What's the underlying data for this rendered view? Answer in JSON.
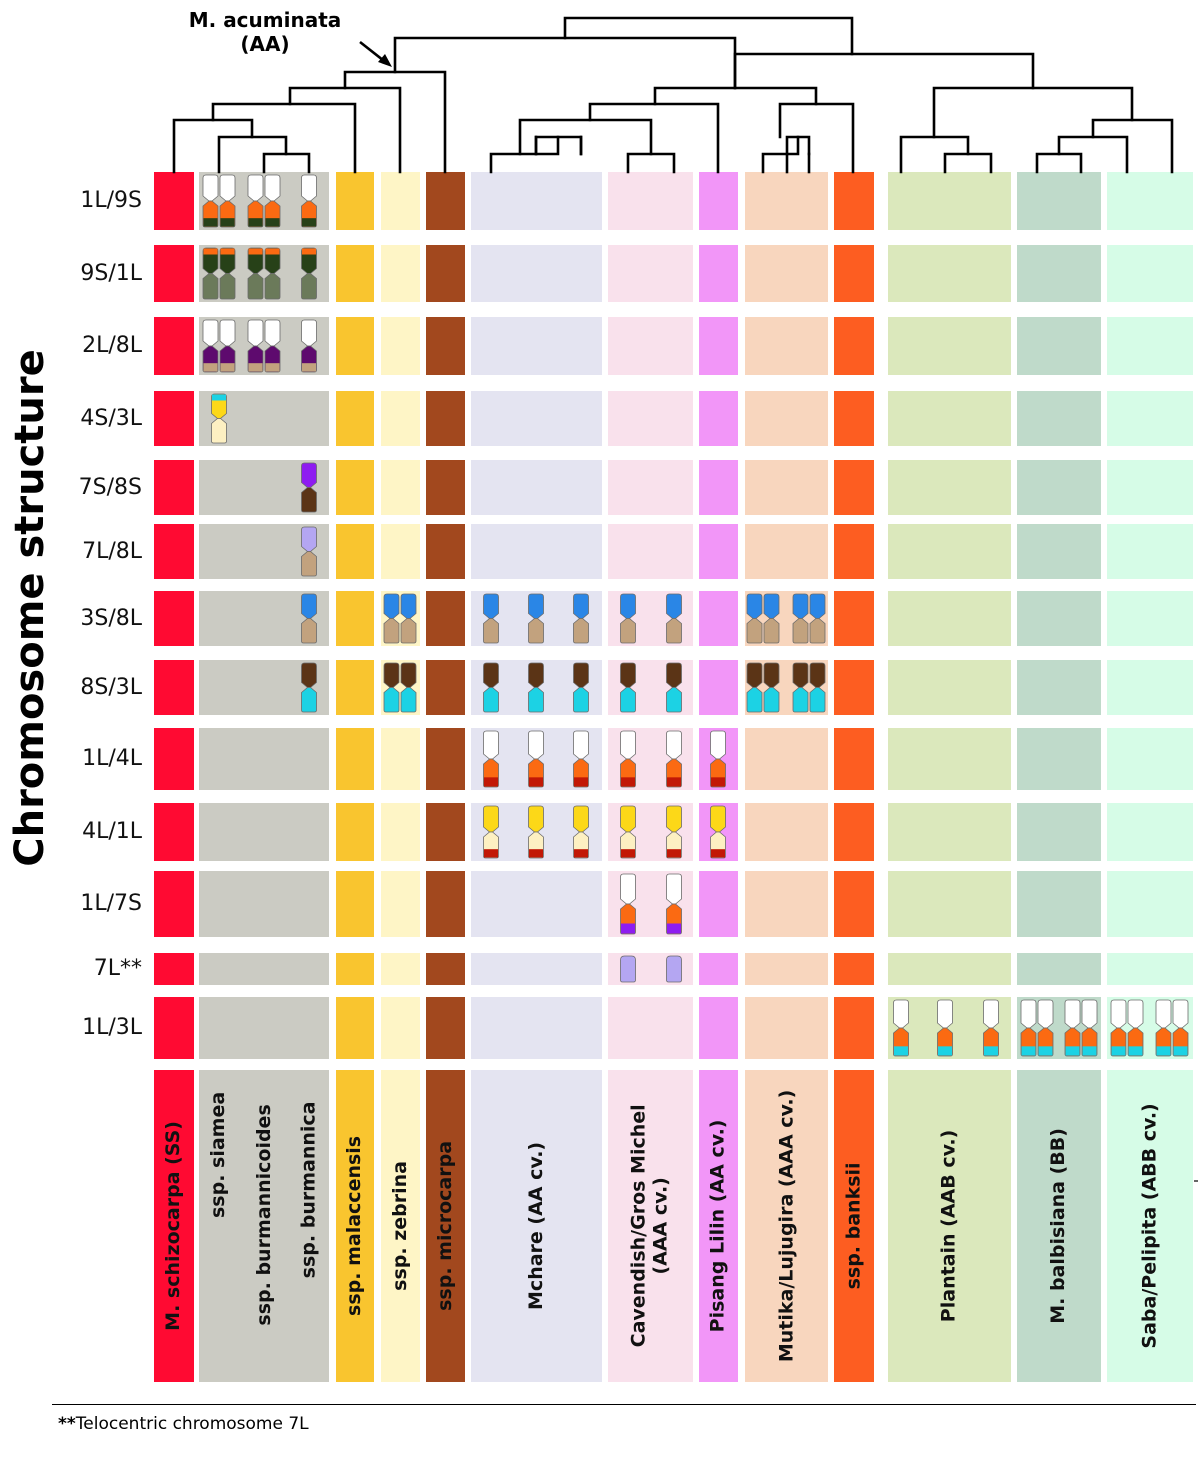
{
  "axis_title": "Chromosome structure",
  "root_label": {
    "line1": "M. acuminata",
    "line2": "(AA)"
  },
  "footnote": {
    "mark": "**",
    "text": "Telocentric chromosome 7L"
  },
  "rows": [
    "1L/9S",
    "9S/1L",
    "2L/8L",
    "4S/3L",
    "7S/8S",
    "7L/8L",
    "3S/8L",
    "8S/3L",
    "1L/4L",
    "4L/1L",
    "1L/7S",
    "7L**",
    "1L/3L"
  ],
  "groups": [
    {
      "key": "schizocarpa",
      "color": "#ff0a32",
      "labels": [
        "M. schizocarpa (SS)"
      ]
    },
    {
      "key": "burmannica",
      "color": "#cbcbc3",
      "labels": [
        "ssp. siamea",
        "ssp. burmannicoides",
        "ssp. burmannica"
      ]
    },
    {
      "key": "malaccensis",
      "color": "#f9c52f",
      "labels": [
        "ssp. malaccensis"
      ]
    },
    {
      "key": "zebrina",
      "color": "#fef5c6",
      "labels": [
        "ssp. zebrina"
      ]
    },
    {
      "key": "microcarpa",
      "color": "#a2481e",
      "labels": [
        "ssp. microcarpa"
      ]
    },
    {
      "key": "mchare",
      "color": "#e4e4f1",
      "labels": [
        "Mchare (AA cv.)"
      ]
    },
    {
      "key": "cavendish",
      "color": "#f9e1ec",
      "labels": [
        "Cavendish/Gros Michel (AAA cv.)"
      ]
    },
    {
      "key": "lilin",
      "color": "#f296f8",
      "labels": [
        "Pisang Lilin (AA cv.)"
      ]
    },
    {
      "key": "mutika",
      "color": "#f8d6be",
      "labels": [
        "Mutika/Lujugira (AAA cv.)"
      ]
    },
    {
      "key": "banksii",
      "color": "#fd5d21",
      "labels": [
        "ssp. banksii"
      ]
    },
    {
      "key": "plantain",
      "color": "#dbe8bc",
      "labels": [
        "Plantain (AAB cv.)"
      ]
    },
    {
      "key": "balbisiana",
      "color": "#bfdaca",
      "labels": [
        "M. balbisiana (BB)"
      ]
    },
    {
      "key": "saba",
      "color": "#d6fce7",
      "labels": [
        "Saba/Pelipita (ABB cv.)"
      ]
    }
  ],
  "segment_colors": {
    "white": "#ffffff",
    "orange": "#fb6a12",
    "dark_green": "#274118",
    "gray_green": "#6b7a5a",
    "purple": "#5e0a6e",
    "tan": "#c2a27e",
    "yellow": "#fcd818",
    "light_yellow": "#fdf0c2",
    "cyan": "#1cd2e4",
    "violet": "#8e1cf0",
    "lavender": "#b4a6f2",
    "brown": "#5b3416",
    "blue": "#2a86e6",
    "red": "#c21806"
  },
  "chromosomes": [
    {
      "row": "1L/9S",
      "group": "burmannica",
      "taxon": 0,
      "count": 2,
      "top": "white",
      "bottom": [
        "orange",
        "dark_green"
      ]
    },
    {
      "row": "1L/9S",
      "group": "burmannica",
      "taxon": 1,
      "count": 2,
      "top": "white",
      "bottom": [
        "orange",
        "dark_green"
      ]
    },
    {
      "row": "1L/9S",
      "group": "burmannica",
      "taxon": 2,
      "count": 1,
      "top": "white",
      "bottom": [
        "orange",
        "dark_green"
      ]
    },
    {
      "row": "9S/1L",
      "group": "burmannica",
      "taxon": 0,
      "count": 2,
      "top": [
        "orange",
        "dark_green"
      ],
      "bottom": "gray_green"
    },
    {
      "row": "9S/1L",
      "group": "burmannica",
      "taxon": 1,
      "count": 2,
      "top": [
        "orange",
        "dark_green"
      ],
      "bottom": "gray_green"
    },
    {
      "row": "9S/1L",
      "group": "burmannica",
      "taxon": 2,
      "count": 1,
      "top": [
        "orange",
        "dark_green"
      ],
      "bottom": "gray_green"
    },
    {
      "row": "2L/8L",
      "group": "burmannica",
      "taxon": 0,
      "count": 2,
      "top": "white",
      "bottom": [
        "purple",
        "tan"
      ]
    },
    {
      "row": "2L/8L",
      "group": "burmannica",
      "taxon": 1,
      "count": 2,
      "top": "white",
      "bottom": [
        "purple",
        "tan"
      ]
    },
    {
      "row": "2L/8L",
      "group": "burmannica",
      "taxon": 2,
      "count": 1,
      "top": "white",
      "bottom": [
        "purple",
        "tan"
      ]
    },
    {
      "row": "4S/3L",
      "group": "burmannica",
      "taxon": 0,
      "count": 1,
      "top": [
        "cyan",
        "yellow"
      ],
      "bottom": "light_yellow"
    },
    {
      "row": "7S/8S",
      "group": "burmannica",
      "taxon": 2,
      "count": 1,
      "top": "violet",
      "bottom": "brown"
    },
    {
      "row": "7L/8L",
      "group": "burmannica",
      "taxon": 2,
      "count": 1,
      "top": "lavender",
      "bottom": "tan"
    },
    {
      "row": "3S/8L",
      "group": "burmannica",
      "taxon": 2,
      "count": 1,
      "top": "blue",
      "bottom": "tan"
    },
    {
      "row": "3S/8L",
      "group": "zebrina",
      "taxon": 0,
      "count": 2,
      "top": "blue",
      "bottom": "tan"
    },
    {
      "row": "3S/8L",
      "group": "mchare",
      "taxon": 0,
      "count": 1,
      "top": "blue",
      "bottom": "tan"
    },
    {
      "row": "3S/8L",
      "group": "mchare",
      "taxon": 1,
      "count": 1,
      "top": "blue",
      "bottom": "tan"
    },
    {
      "row": "3S/8L",
      "group": "mchare",
      "taxon": 2,
      "count": 1,
      "top": "blue",
      "bottom": "tan"
    },
    {
      "row": "3S/8L",
      "group": "cavendish",
      "taxon": 0,
      "count": 1,
      "top": "blue",
      "bottom": "tan"
    },
    {
      "row": "3S/8L",
      "group": "cavendish",
      "taxon": 1,
      "count": 1,
      "top": "blue",
      "bottom": "tan"
    },
    {
      "row": "3S/8L",
      "group": "mutika",
      "taxon": 0,
      "count": 2,
      "top": "blue",
      "bottom": "tan"
    },
    {
      "row": "3S/8L",
      "group": "mutika",
      "taxon": 1,
      "count": 2,
      "top": "blue",
      "bottom": "tan"
    },
    {
      "row": "8S/3L",
      "group": "burmannica",
      "taxon": 2,
      "count": 1,
      "top": "brown",
      "bottom": "cyan"
    },
    {
      "row": "8S/3L",
      "group": "zebrina",
      "taxon": 0,
      "count": 2,
      "top": "brown",
      "bottom": "cyan"
    },
    {
      "row": "8S/3L",
      "group": "mchare",
      "taxon": 0,
      "count": 1,
      "top": "brown",
      "bottom": "cyan"
    },
    {
      "row": "8S/3L",
      "group": "mchare",
      "taxon": 1,
      "count": 1,
      "top": "brown",
      "bottom": "cyan"
    },
    {
      "row": "8S/3L",
      "group": "mchare",
      "taxon": 2,
      "count": 1,
      "top": "brown",
      "bottom": "cyan"
    },
    {
      "row": "8S/3L",
      "group": "cavendish",
      "taxon": 0,
      "count": 1,
      "top": "brown",
      "bottom": "cyan"
    },
    {
      "row": "8S/3L",
      "group": "cavendish",
      "taxon": 1,
      "count": 1,
      "top": "brown",
      "bottom": "cyan"
    },
    {
      "row": "8S/3L",
      "group": "mutika",
      "taxon": 0,
      "count": 2,
      "top": "brown",
      "bottom": "cyan"
    },
    {
      "row": "8S/3L",
      "group": "mutika",
      "taxon": 1,
      "count": 2,
      "top": "brown",
      "bottom": "cyan"
    },
    {
      "row": "1L/4L",
      "group": "mchare",
      "taxon": 0,
      "count": 1,
      "top": "white",
      "bottom": [
        "orange",
        "red"
      ]
    },
    {
      "row": "1L/4L",
      "group": "mchare",
      "taxon": 1,
      "count": 1,
      "top": "white",
      "bottom": [
        "orange",
        "red"
      ]
    },
    {
      "row": "1L/4L",
      "group": "mchare",
      "taxon": 2,
      "count": 1,
      "top": "white",
      "bottom": [
        "orange",
        "red"
      ]
    },
    {
      "row": "1L/4L",
      "group": "cavendish",
      "taxon": 0,
      "count": 1,
      "top": "white",
      "bottom": [
        "orange",
        "red"
      ]
    },
    {
      "row": "1L/4L",
      "group": "cavendish",
      "taxon": 1,
      "count": 1,
      "top": "white",
      "bottom": [
        "orange",
        "red"
      ]
    },
    {
      "row": "1L/4L",
      "group": "lilin",
      "taxon": 0,
      "count": 1,
      "top": "white",
      "bottom": [
        "orange",
        "red"
      ]
    },
    {
      "row": "4L/1L",
      "group": "mchare",
      "taxon": 0,
      "count": 1,
      "top": "yellow",
      "bottom": [
        "light_yellow",
        "red"
      ]
    },
    {
      "row": "4L/1L",
      "group": "mchare",
      "taxon": 1,
      "count": 1,
      "top": "yellow",
      "bottom": [
        "light_yellow",
        "red"
      ]
    },
    {
      "row": "4L/1L",
      "group": "mchare",
      "taxon": 2,
      "count": 1,
      "top": "yellow",
      "bottom": [
        "light_yellow",
        "red"
      ]
    },
    {
      "row": "4L/1L",
      "group": "cavendish",
      "taxon": 0,
      "count": 1,
      "top": "yellow",
      "bottom": [
        "light_yellow",
        "red"
      ]
    },
    {
      "row": "4L/1L",
      "group": "cavendish",
      "taxon": 1,
      "count": 1,
      "top": "yellow",
      "bottom": [
        "light_yellow",
        "red"
      ]
    },
    {
      "row": "4L/1L",
      "group": "lilin",
      "taxon": 0,
      "count": 1,
      "top": "yellow",
      "bottom": [
        "light_yellow",
        "red"
      ]
    },
    {
      "row": "1L/7S",
      "group": "cavendish",
      "taxon": 0,
      "count": 1,
      "top": "white",
      "bottom": [
        "orange",
        "violet"
      ]
    },
    {
      "row": "1L/7S",
      "group": "cavendish",
      "taxon": 1,
      "count": 1,
      "top": "white",
      "bottom": [
        "orange",
        "violet"
      ]
    },
    {
      "row": "7L**",
      "group": "cavendish",
      "taxon": 0,
      "count": 1,
      "telocentric": true,
      "bottom": "lavender"
    },
    {
      "row": "7L**",
      "group": "cavendish",
      "taxon": 1,
      "count": 1,
      "telocentric": true,
      "bottom": "lavender"
    },
    {
      "row": "1L/3L",
      "group": "plantain",
      "taxon": 0,
      "count": 1,
      "top": "white",
      "bottom": [
        "orange",
        "cyan"
      ]
    },
    {
      "row": "1L/3L",
      "group": "plantain",
      "taxon": 1,
      "count": 1,
      "top": "white",
      "bottom": [
        "orange",
        "cyan"
      ]
    },
    {
      "row": "1L/3L",
      "group": "plantain",
      "taxon": 2,
      "count": 1,
      "top": "white",
      "bottom": [
        "orange",
        "cyan"
      ]
    },
    {
      "row": "1L/3L",
      "group": "balbisiana",
      "taxon": 0,
      "count": 2,
      "top": "white",
      "bottom": [
        "orange",
        "cyan"
      ]
    },
    {
      "row": "1L/3L",
      "group": "balbisiana",
      "taxon": 1,
      "count": 2,
      "top": "white",
      "bottom": [
        "orange",
        "cyan"
      ]
    },
    {
      "row": "1L/3L",
      "group": "saba",
      "taxon": 0,
      "count": 2,
      "top": "white",
      "bottom": [
        "orange",
        "cyan"
      ]
    },
    {
      "row": "1L/3L",
      "group": "saba",
      "taxon": 1,
      "count": 2,
      "top": "white",
      "bottom": [
        "orange",
        "cyan"
      ]
    }
  ]
}
